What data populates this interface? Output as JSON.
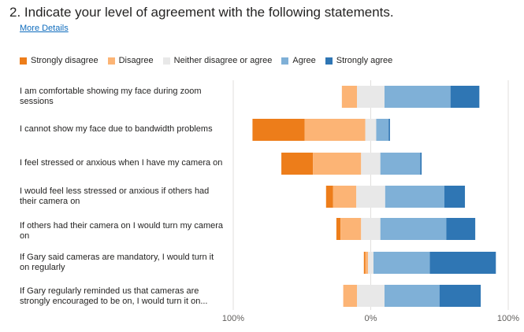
{
  "question": {
    "title": "2.  Indicate your level of agreement with the following statements.",
    "more_details": "More Details"
  },
  "colors": {
    "strongly_disagree": "#ed7d1a",
    "disagree": "#fcb475",
    "neutral": "#e8e8e8",
    "agree": "#7fb0d7",
    "strongly_agree": "#2f76b4",
    "gridline": "#e1dfdd"
  },
  "chart_data": {
    "type": "bar",
    "orientation": "horizontal-diverging-stacked",
    "xlim": [
      -100,
      100
    ],
    "x_ticks": [
      "100%",
      "0%",
      "100%"
    ],
    "legend_position": "top-left",
    "legend": [
      "Strongly disagree",
      "Disagree",
      "Neither disagree or agree",
      "Agree",
      "Strongly agree"
    ],
    "categories": [
      "I am comfortable showing my face during zoom sessions",
      "I cannot show my face due to bandwidth problems",
      "I feel stressed or anxious when I have my camera on",
      "I would feel less stressed or anxious if others had their camera on",
      "If others had their camera on I would turn my camera on",
      "If Gary said cameras are mandatory, I would turn it on regularly",
      "If Gary regularly reminded us that cameras are strongly encouraged to be on, I would turn it on..."
    ],
    "series": [
      {
        "name": "Strongly disagree",
        "values": [
          0,
          38,
          23,
          5,
          3,
          1,
          0
        ]
      },
      {
        "name": "Disagree",
        "values": [
          11,
          44,
          35,
          17,
          15,
          2,
          10
        ]
      },
      {
        "name": "Neither disagree or agree",
        "values": [
          20,
          8,
          14,
          21,
          14,
          4,
          20
        ]
      },
      {
        "name": "Agree",
        "values": [
          48,
          9,
          29,
          43,
          48,
          41,
          40
        ]
      },
      {
        "name": "Strongly agree",
        "values": [
          21,
          1,
          1,
          15,
          21,
          48,
          30
        ]
      }
    ]
  }
}
